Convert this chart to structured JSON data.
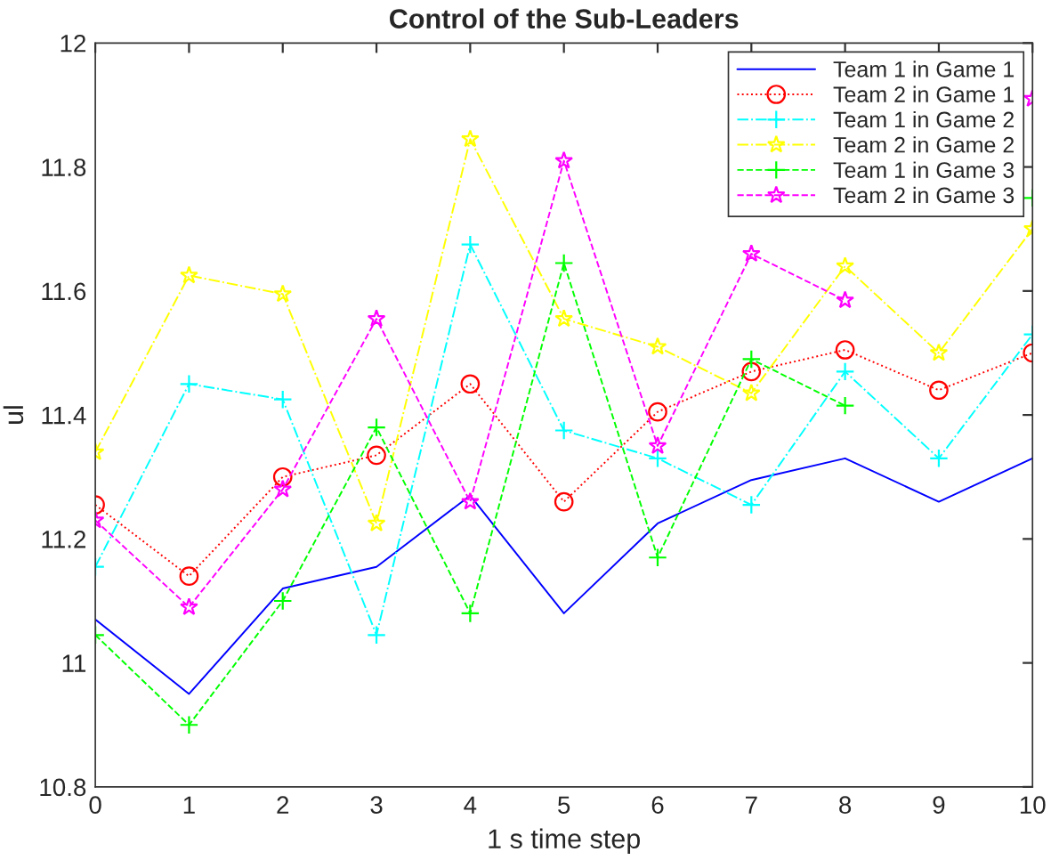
{
  "chart_data": {
    "type": "line",
    "title": "Control of the Sub-Leaders",
    "xlabel": "1 s time step",
    "ylabel": "ul",
    "x": [
      0,
      1,
      2,
      3,
      4,
      5,
      6,
      7,
      8,
      9,
      10
    ],
    "series": [
      {
        "name": "Team 1 in Game 1",
        "color": "#0000ff",
        "marker": "none",
        "line_style": "solid",
        "values": [
          11.07,
          10.95,
          11.12,
          11.155,
          11.27,
          11.08,
          11.225,
          11.295,
          11.33,
          11.26,
          11.33
        ]
      },
      {
        "name": "Team 2 in Game 1",
        "color": "#ff0000",
        "marker": "circle",
        "line_style": "dotted",
        "values": [
          11.255,
          11.14,
          11.3,
          11.335,
          11.45,
          11.26,
          11.405,
          11.47,
          11.505,
          11.44,
          11.5
        ]
      },
      {
        "name": "Team 1 in Game 2",
        "color": "#00ffff",
        "marker": "cross",
        "line_style": "dashdot",
        "values": [
          11.155,
          11.45,
          11.425,
          11.045,
          11.675,
          11.375,
          11.33,
          11.255,
          11.47,
          11.33,
          11.53
        ]
      },
      {
        "name": "Team 2 in Game 2",
        "color": "#ffff00",
        "marker": "star",
        "line_style": "dashdot",
        "values": [
          11.34,
          11.625,
          11.595,
          11.225,
          11.845,
          11.555,
          11.51,
          11.435,
          11.64,
          11.5,
          11.7
        ]
      },
      {
        "name": "Team 1 in Game 3",
        "color": "#00ff00",
        "marker": "cross",
        "line_style": "dashed",
        "values": [
          11.045,
          10.9,
          11.1,
          11.38,
          11.08,
          11.645,
          11.17,
          11.49,
          11.415,
          null,
          11.75
        ]
      },
      {
        "name": "Team 2 in Game 3",
        "color": "#ff00ff",
        "marker": "star",
        "line_style": "dashed",
        "values": [
          11.23,
          11.09,
          11.28,
          11.555,
          11.26,
          11.81,
          11.35,
          11.66,
          11.585,
          null,
          11.91
        ]
      }
    ],
    "xlim": [
      0,
      10
    ],
    "xticks": [
      0,
      1,
      2,
      3,
      4,
      5,
      6,
      7,
      8,
      9,
      10
    ],
    "ylim": [
      10.8,
      12
    ],
    "yticks": [
      10.8,
      11,
      11.2,
      11.4,
      11.6,
      11.8,
      12
    ],
    "grid": false,
    "legend": "top right"
  }
}
